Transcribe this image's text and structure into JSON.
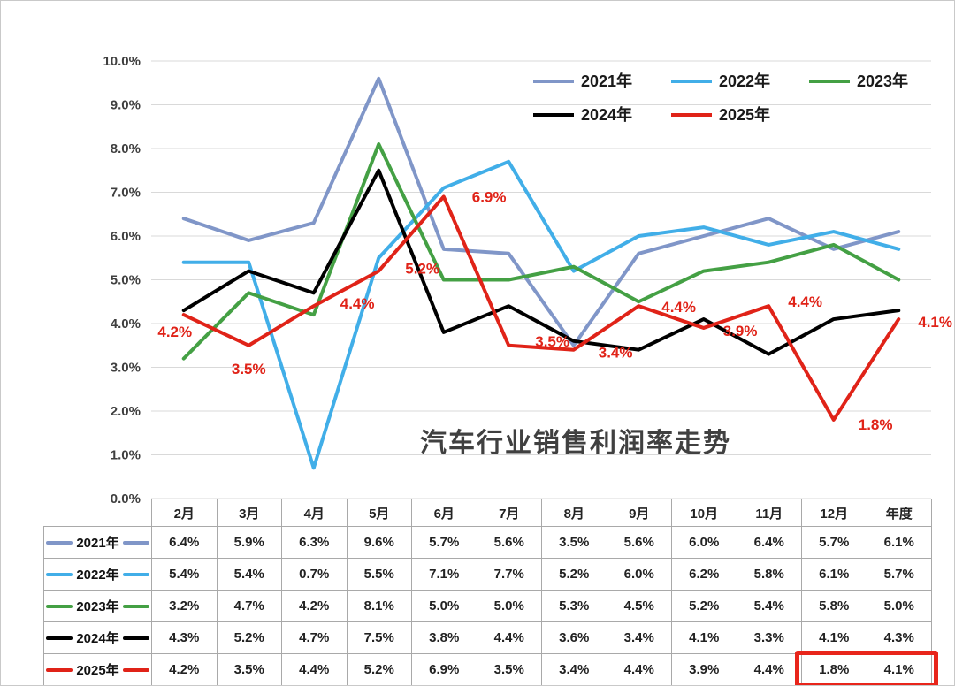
{
  "chart_data": {
    "type": "line",
    "title": "汽车行业销售利润率走势",
    "categories": [
      "2月",
      "3月",
      "4月",
      "5月",
      "6月",
      "7月",
      "8月",
      "9月",
      "10月",
      "11月",
      "12月",
      "年度"
    ],
    "series": [
      {
        "name": "2021年",
        "color": "#8096C8",
        "values": [
          6.4,
          5.9,
          6.3,
          9.6,
          5.7,
          5.6,
          3.5,
          5.6,
          6.0,
          6.4,
          5.7,
          6.1
        ]
      },
      {
        "name": "2022年",
        "color": "#41AEE8",
        "values": [
          5.4,
          5.4,
          0.7,
          5.5,
          7.1,
          7.7,
          5.2,
          6.0,
          6.2,
          5.8,
          6.1,
          5.7
        ]
      },
      {
        "name": "2023年",
        "color": "#44A044",
        "values": [
          3.2,
          4.7,
          4.2,
          8.1,
          5.0,
          5.0,
          5.3,
          4.5,
          5.2,
          5.4,
          5.8,
          5.0
        ]
      },
      {
        "name": "2024年",
        "color": "#000000",
        "values": [
          4.3,
          5.2,
          4.7,
          7.5,
          3.8,
          4.4,
          3.6,
          3.4,
          4.1,
          3.3,
          4.1,
          4.3
        ]
      },
      {
        "name": "2025年",
        "color": "#E02318",
        "values": [
          4.2,
          3.5,
          4.4,
          5.2,
          6.9,
          3.5,
          3.4,
          4.4,
          3.9,
          4.4,
          1.8,
          4.1
        ]
      }
    ],
    "ylim": [
      0,
      10
    ],
    "y_step": 1,
    "y_tick_format": "percent_one_decimal",
    "grid": "horizontal",
    "legend_position": "top-right-inside",
    "legend_rows": [
      [
        "2021年",
        "2022年",
        "2023年"
      ],
      [
        "2024年",
        "2025年"
      ]
    ],
    "annotated_series": "2025年",
    "annotation_labels": [
      "4.2%",
      "3.5%",
      "4.4%",
      "5.2%",
      "6.9%",
      "3.5%",
      "3.4%",
      "4.4%",
      "3.9%",
      "4.4%",
      "1.8%",
      "4.1%"
    ],
    "highlight": {
      "series": "2025年",
      "columns": [
        "12月",
        "年度"
      ],
      "values": [
        "1.8%",
        "4.1%"
      ],
      "color": "#E8251B"
    }
  },
  "colors": {
    "grid": "#D9D9D9",
    "axis_text": "#3F3F3F",
    "title_text": "#404040",
    "table_border": "#A9A9A9",
    "highlight_border": "#E8251B"
  }
}
